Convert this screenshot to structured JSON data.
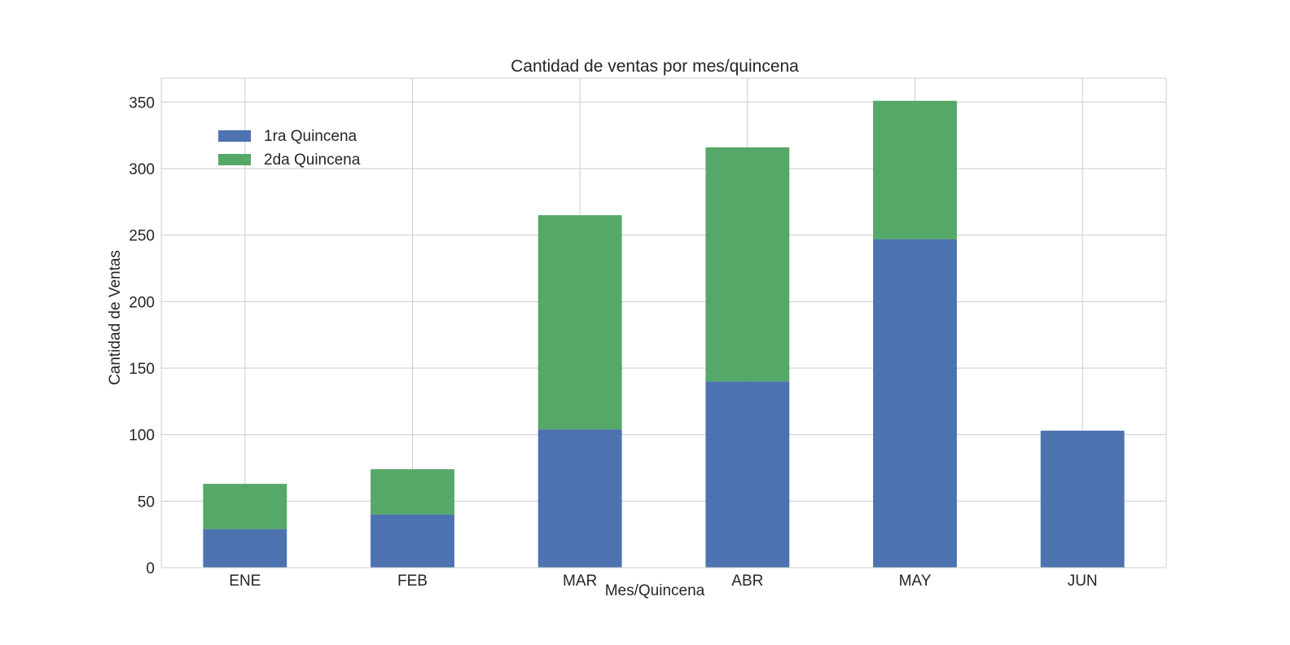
{
  "chart_data": {
    "type": "bar",
    "stacked": true,
    "title": "Cantidad de ventas por mes/quincena",
    "xlabel": "Mes/Quincena",
    "ylabel": "Cantidad de Ventas",
    "categories": [
      "ENE",
      "FEB",
      "MAR",
      "ABR",
      "MAY",
      "JUN"
    ],
    "series": [
      {
        "name": "1ra Quincena",
        "color": "#4c72b0",
        "values": [
          29,
          40,
          104,
          140,
          247,
          103
        ]
      },
      {
        "name": "2da Quincena",
        "color": "#55a868",
        "values": [
          34,
          34,
          161,
          176,
          104,
          0
        ]
      }
    ],
    "ylim": [
      0,
      368
    ],
    "yticks": [
      0,
      50,
      100,
      150,
      200,
      250,
      300,
      350
    ],
    "grid": true,
    "legend_position": "upper-left"
  }
}
